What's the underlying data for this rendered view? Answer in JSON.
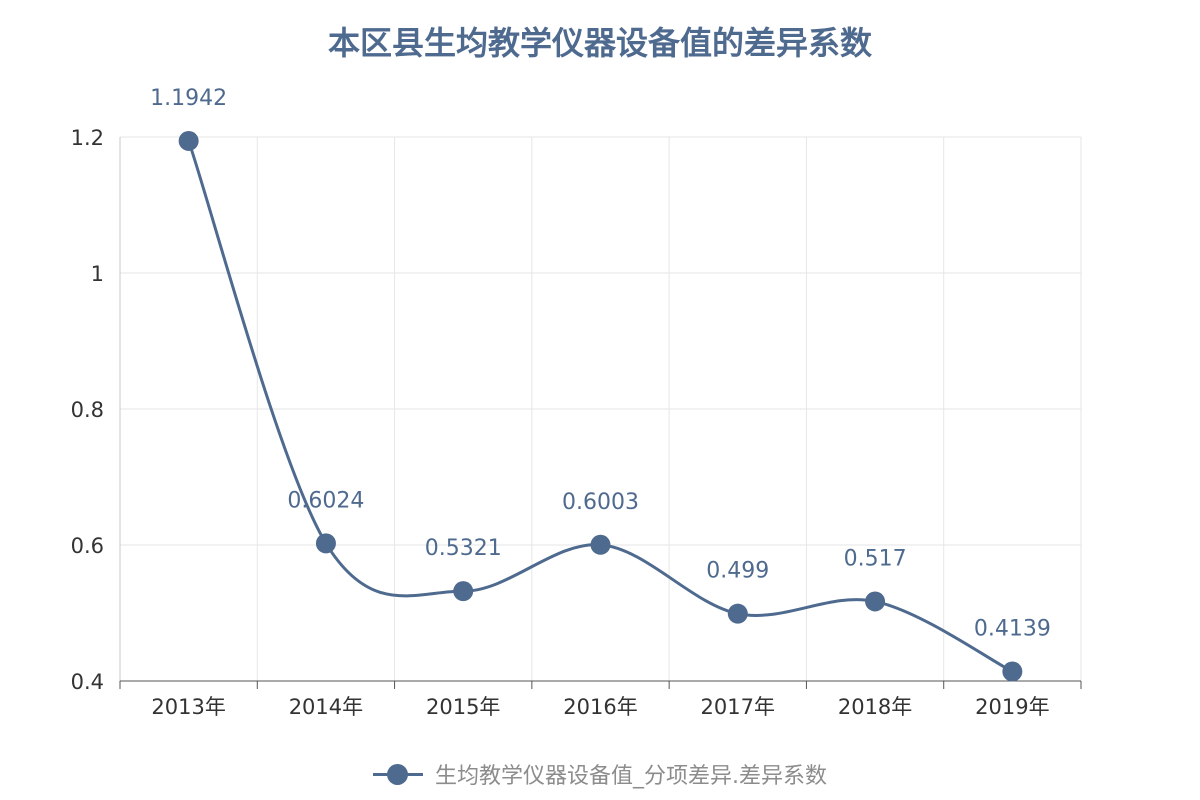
{
  "chart_data": {
    "type": "line",
    "title": "本区县生均教学仪器设备值的差异系数",
    "categories": [
      "2013年",
      "2014年",
      "2015年",
      "2016年",
      "2017年",
      "2018年",
      "2019年"
    ],
    "series": [
      {
        "name": "生均教学仪器设备值_分项差异.差异系数",
        "values": [
          1.1942,
          0.6024,
          0.5321,
          0.6003,
          0.499,
          0.517,
          0.4139
        ],
        "labels": [
          "1.1942",
          "0.6024",
          "0.5321",
          "0.6003",
          "0.499",
          "0.517",
          "0.4139"
        ],
        "color": "#4f6a8f"
      }
    ],
    "ylim": [
      0.4,
      1.2
    ],
    "yticks": [
      "0.4",
      "0.6",
      "0.8",
      "1",
      "1.2"
    ],
    "grid": true,
    "smooth": true,
    "legend_position": "bottom"
  }
}
